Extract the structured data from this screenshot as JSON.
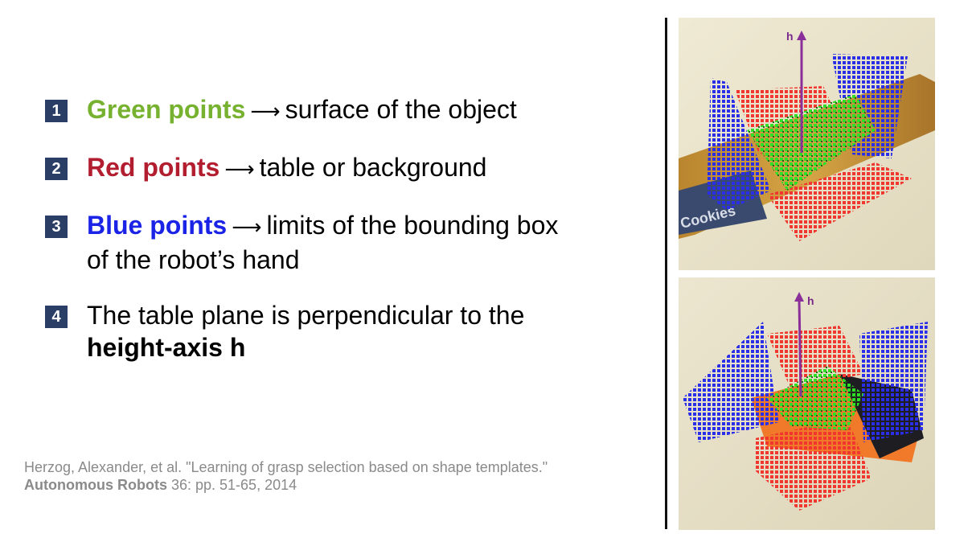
{
  "bullets": [
    {
      "number": "1",
      "keyword": "Green points",
      "arrow": "⟶",
      "text": "surface of the object",
      "text2": ""
    },
    {
      "number": "2",
      "keyword": "Red points",
      "arrow": "⟶",
      "text": "table or background",
      "text2": ""
    },
    {
      "number": "3",
      "keyword": "Blue points",
      "arrow": "⟶",
      "text": "limits of the bounding box",
      "text2": "of the robot’s hand"
    },
    {
      "number": "4",
      "line1": "The table plane is perpendicular to the",
      "line2": "height-axis h"
    }
  ],
  "colors": {
    "green": "#76b230",
    "red": "#b21e30",
    "blue": "#1a23e6",
    "badge": "#2b3f66"
  },
  "citation": {
    "part1": "Herzog, Alexander, et al. \"Learning of grasp selection based on shape templates.\"",
    "source": "Autonomous Robots",
    "part2": " 36: pp. 51-65, 2014"
  },
  "images": {
    "top": {
      "axis_label": "h",
      "wrapper_text": "Cookies"
    },
    "bottom": {
      "axis_label": "h"
    }
  }
}
